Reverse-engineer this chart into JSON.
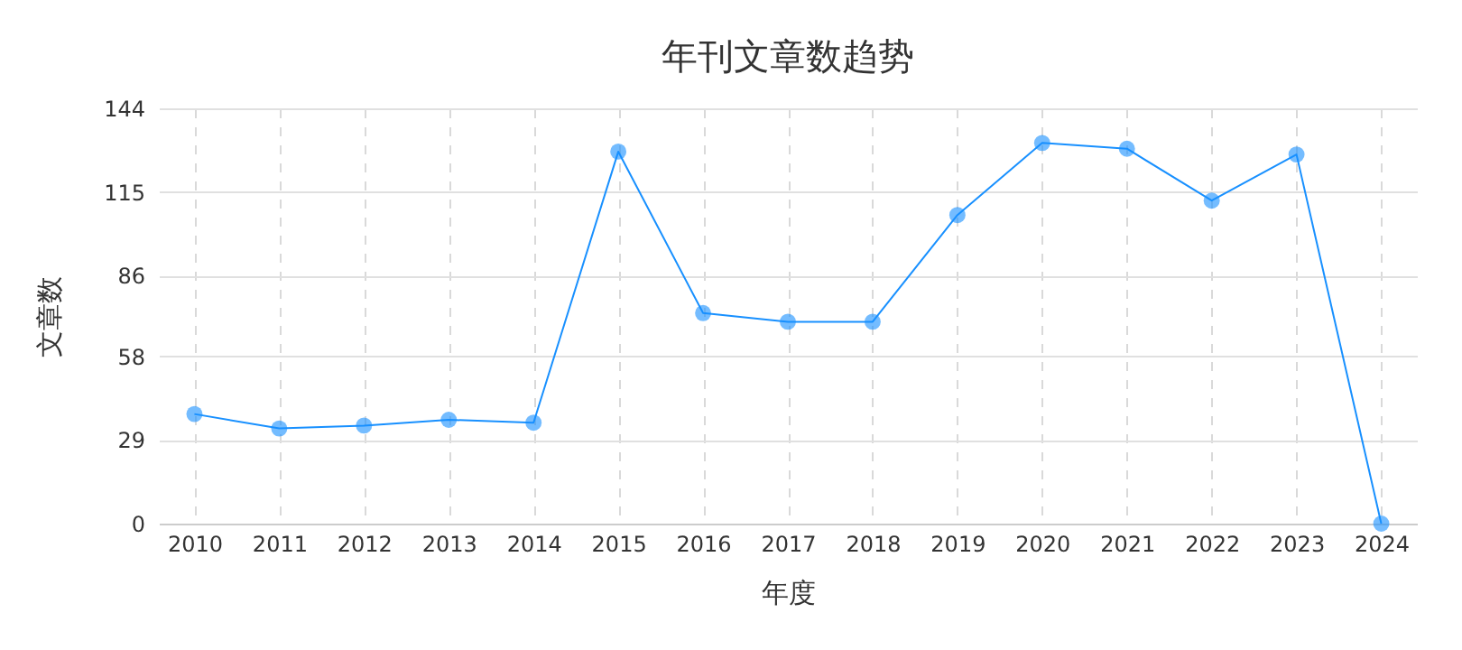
{
  "chart_data": {
    "type": "line",
    "title": "年刊文章数趋势",
    "xlabel": "年度",
    "ylabel": "文章数",
    "categories": [
      "2010",
      "2011",
      "2012",
      "2013",
      "2014",
      "2015",
      "2016",
      "2017",
      "2018",
      "2019",
      "2020",
      "2021",
      "2022",
      "2023",
      "2024"
    ],
    "series": [
      {
        "color": "#1890ff",
        "values": [
          38,
          33,
          34,
          36,
          35,
          129,
          73,
          70,
          70,
          107,
          132,
          130,
          112,
          128,
          0
        ]
      }
    ],
    "ylim": [
      0,
      144
    ],
    "yticks": [
      0,
      29,
      58,
      86,
      115,
      144
    ],
    "grid": true,
    "marker": "circle",
    "line_style": "solid"
  }
}
